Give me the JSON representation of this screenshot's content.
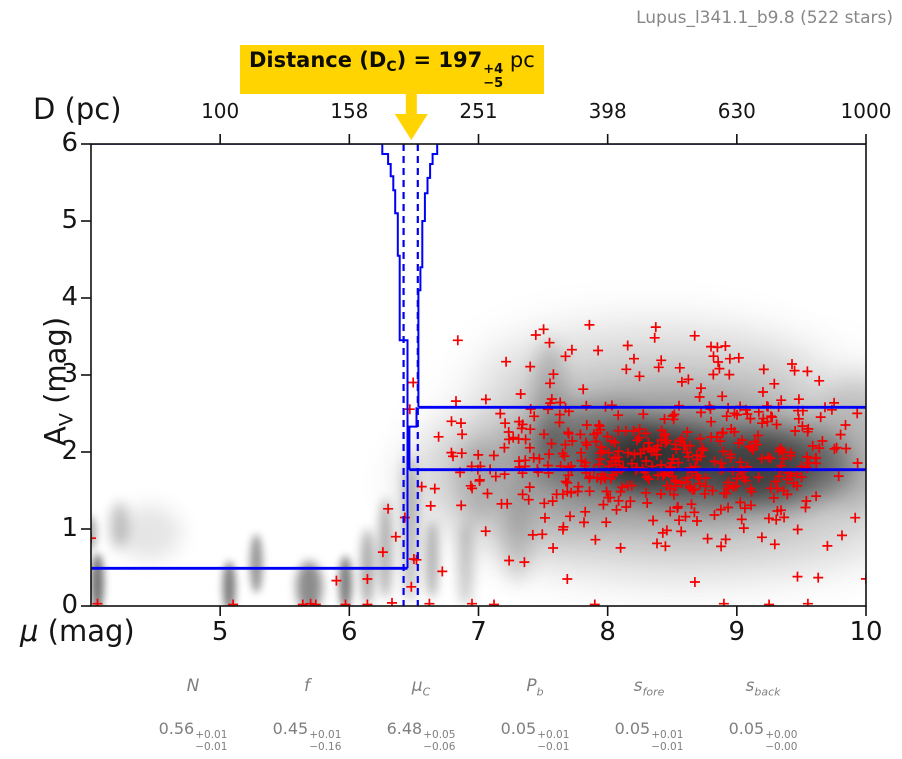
{
  "title": "Lupus_l341.1_b9.8 (522 stars)",
  "colors": {
    "line_blue": "#0000f5",
    "marker_red": "#f50000",
    "accent_yellow": "#ffd400",
    "axis_black": "#111111",
    "muted_gray": "#878787",
    "density_black": "#000000"
  },
  "annotation": {
    "bold_prefix": "Distance (D",
    "subscript": "C",
    "bold_mid": ") = 197",
    "err_plus": "+4",
    "err_minus": "−5",
    "unit": " pc",
    "arrow_mu": 6.48
  },
  "axes": {
    "top": {
      "label": "D (pc)",
      "ticks": [
        "100",
        "158",
        "251",
        "398",
        "630",
        "1000"
      ],
      "mu": [
        5,
        6,
        7,
        8,
        9,
        10
      ]
    },
    "bottom": {
      "label_symbol": "μ",
      "label_rest": " (mag)",
      "ticks": [
        "5",
        "6",
        "7",
        "8",
        "9",
        "10"
      ],
      "mu": [
        5,
        6,
        7,
        8,
        9,
        10
      ]
    },
    "left": {
      "label_main": "A",
      "label_sub": "V",
      "label_rest": " (mag)",
      "ticks": [
        "0",
        "1",
        "2",
        "3",
        "4",
        "5",
        "6"
      ],
      "av": [
        0,
        1,
        2,
        3,
        4,
        5,
        6
      ]
    }
  },
  "parameters": [
    {
      "symbol": "N",
      "sub": "",
      "value": "0.56",
      "plus": "+0.01",
      "minus": "−0.01"
    },
    {
      "symbol": "f",
      "sub": "",
      "value": "0.45",
      "plus": "+0.01",
      "minus": "−0.16"
    },
    {
      "symbol": "μ",
      "sub": "C",
      "value": "6.48",
      "plus": "+0.05",
      "minus": "−0.06"
    },
    {
      "symbol": "P",
      "sub": "b",
      "value": "0.05",
      "plus": "+0.01",
      "minus": "−0.01"
    },
    {
      "symbol": "s",
      "sub": "fore",
      "value": "0.05",
      "plus": "+0.01",
      "minus": "−0.01"
    },
    {
      "symbol": "s",
      "sub": "back",
      "value": "0.05",
      "plus": "+0.00",
      "minus": "−0.00"
    }
  ],
  "chart_data": {
    "type": "scatter",
    "title": "Lupus_l341.1_b9.8 (522 stars)",
    "n_stars": 522,
    "xlabel": "μ (mag)",
    "ylabel": "A_V (mag)",
    "top_axis_label": "D (pc)",
    "xlim": [
      4,
      10
    ],
    "ylim": [
      0,
      6
    ],
    "top_axis_ticks_pc": [
      100,
      158,
      251,
      398,
      630,
      1000
    ],
    "top_axis_tick_mu": [
      5,
      6,
      7,
      8,
      9,
      10
    ],
    "distance_pc": {
      "value": 197,
      "plus": 4,
      "minus": 5
    },
    "model": {
      "mu_c": 6.48,
      "mu_c_plus": 0.05,
      "mu_c_minus": 0.06,
      "foreground_av": 0.49,
      "background_av_upper": 2.58,
      "background_av_lower": 1.77,
      "mu_16": 6.42,
      "mu_84": 6.53
    },
    "top_edge_segments": [
      [
        [
          4,
          6
        ],
        [
          6.255,
          6
        ]
      ],
      [
        [
          6.68,
          6
        ],
        [
          10,
          6
        ]
      ]
    ],
    "posterior_outline_left": [
      [
        6.255,
        6
      ],
      [
        6.255,
        5.87
      ],
      [
        6.3,
        5.87
      ],
      [
        6.3,
        5.74
      ],
      [
        6.32,
        5.74
      ],
      [
        6.32,
        5.58
      ],
      [
        6.34,
        5.58
      ],
      [
        6.34,
        5.4
      ],
      [
        6.355,
        5.4
      ],
      [
        6.355,
        5.1
      ],
      [
        6.375,
        5.1
      ],
      [
        6.375,
        4.55
      ],
      [
        6.39,
        4.55
      ],
      [
        6.39,
        3.45
      ],
      [
        6.45,
        3.45
      ],
      [
        6.45,
        0.49
      ]
    ],
    "posterior_outline_right": [
      [
        6.68,
        6
      ],
      [
        6.68,
        5.87
      ],
      [
        6.645,
        5.87
      ],
      [
        6.645,
        5.74
      ],
      [
        6.625,
        5.74
      ],
      [
        6.625,
        5.56
      ],
      [
        6.605,
        5.56
      ],
      [
        6.605,
        5.36
      ],
      [
        6.585,
        5.36
      ],
      [
        6.585,
        5.0
      ],
      [
        6.565,
        5.0
      ],
      [
        6.565,
        4.4
      ],
      [
        6.55,
        4.4
      ],
      [
        6.55,
        4.1
      ],
      [
        6.535,
        4.1
      ],
      [
        6.535,
        2.58
      ]
    ],
    "notch_path": [
      [
        6.52,
        2.58
      ],
      [
        6.52,
        2.33
      ],
      [
        6.465,
        2.33
      ],
      [
        6.465,
        1.77
      ]
    ],
    "thick_lines": [
      [
        [
          4,
          0.49
        ],
        [
          6.45,
          0.49
        ]
      ],
      [
        [
          6.535,
          2.58
        ],
        [
          10,
          2.58
        ]
      ],
      [
        [
          6.465,
          1.77
        ],
        [
          10,
          1.77
        ]
      ]
    ],
    "density_blobs": [
      [
        8.6,
        1.9,
        1.9,
        1.3,
        0.18,
        30
      ],
      [
        8.5,
        1.9,
        1.3,
        0.8,
        0.28,
        20
      ],
      [
        8.8,
        1.8,
        0.8,
        0.5,
        0.4,
        14
      ],
      [
        8.35,
        1.95,
        0.5,
        0.42,
        0.38,
        11
      ],
      [
        9.35,
        1.8,
        0.55,
        0.5,
        0.3,
        12
      ],
      [
        7.95,
        2.05,
        0.5,
        0.55,
        0.22,
        12
      ],
      [
        8.3,
        3.0,
        1.3,
        0.7,
        0.1,
        22
      ],
      [
        7.25,
        1.6,
        0.9,
        0.8,
        0.1,
        18
      ],
      [
        9.95,
        2.1,
        0.35,
        0.9,
        0.15,
        14
      ],
      [
        8.6,
        0.85,
        1.6,
        0.5,
        0.08,
        20
      ],
      [
        4.05,
        0.3,
        0.05,
        0.38,
        0.55,
        4
      ],
      [
        4.0,
        0.95,
        0.045,
        0.22,
        0.3,
        4
      ],
      [
        4.22,
        1.05,
        0.07,
        0.3,
        0.22,
        6
      ],
      [
        4.45,
        0.95,
        0.25,
        0.35,
        0.1,
        10
      ],
      [
        5.07,
        0.25,
        0.05,
        0.33,
        0.5,
        4
      ],
      [
        5.28,
        0.55,
        0.05,
        0.38,
        0.4,
        4
      ],
      [
        5.69,
        0.25,
        0.1,
        0.33,
        0.45,
        5
      ],
      [
        5.97,
        0.3,
        0.05,
        0.35,
        0.5,
        4
      ],
      [
        6.14,
        0.5,
        0.05,
        0.5,
        0.35,
        5
      ],
      [
        6.28,
        0.75,
        0.055,
        0.65,
        0.3,
        5
      ],
      [
        6.47,
        1.0,
        0.06,
        0.95,
        0.28,
        6
      ],
      [
        6.64,
        0.6,
        0.05,
        0.5,
        0.3,
        5
      ],
      [
        6.9,
        0.55,
        0.06,
        0.55,
        0.22,
        6
      ],
      [
        7.3,
        0.95,
        0.12,
        0.65,
        0.15,
        9
      ],
      [
        7.55,
        2.7,
        0.13,
        0.75,
        0.18,
        9
      ],
      [
        7.0,
        1.6,
        0.18,
        0.55,
        0.12,
        9
      ]
    ],
    "scatter": {
      "seed": 7,
      "clusters": [
        {
          "n": 440,
          "mu": 8.55,
          "av": 1.95,
          "smu": 0.8,
          "sav": 0.52,
          "clip": [
            6.3,
            10.04,
            0.02,
            3.7
          ]
        },
        {
          "n": 26,
          "mu": 7.2,
          "av": 1.5,
          "smu": 0.42,
          "sav": 0.55,
          "clip": [
            6.35,
            8.1,
            0.15,
            3.1
          ]
        },
        {
          "n": 18,
          "mu": 8.25,
          "av": 3.3,
          "smu": 0.45,
          "sav": 0.18,
          "clip": [
            7.4,
            9.2,
            2.9,
            3.72
          ]
        },
        {
          "n": 10,
          "mu": 9.1,
          "av": 0.85,
          "smu": 0.55,
          "sav": 0.3,
          "clip": [
            8.2,
            10.0,
            0.1,
            1.4
          ]
        }
      ],
      "extra_points": [
        [
          4.05,
          0.03
        ],
        [
          4.0,
          0.88
        ],
        [
          5.1,
          0.02
        ],
        [
          5.64,
          0.02
        ],
        [
          5.7,
          0.03
        ],
        [
          5.74,
          0.02
        ],
        [
          5.9,
          0.33
        ],
        [
          5.97,
          0.02
        ],
        [
          6.14,
          0.35
        ],
        [
          6.14,
          0.02
        ],
        [
          6.33,
          0.04
        ],
        [
          6.48,
          0.25
        ],
        [
          6.26,
          0.7
        ],
        [
          6.36,
          0.9
        ],
        [
          6.43,
          1.15
        ],
        [
          6.52,
          0.6
        ],
        [
          6.56,
          1.55
        ],
        [
          6.63,
          1.3
        ],
        [
          6.84,
          3.45
        ],
        [
          7.55,
          3.42
        ],
        [
          6.62,
          0.03
        ],
        [
          6.72,
          0.45
        ],
        [
          6.95,
          0.03
        ],
        [
          7.12,
          0.02
        ],
        [
          7.9,
          0.02
        ],
        [
          8.9,
          0.03
        ],
        [
          9.25,
          0.02
        ],
        [
          9.55,
          0.03
        ]
      ]
    }
  }
}
